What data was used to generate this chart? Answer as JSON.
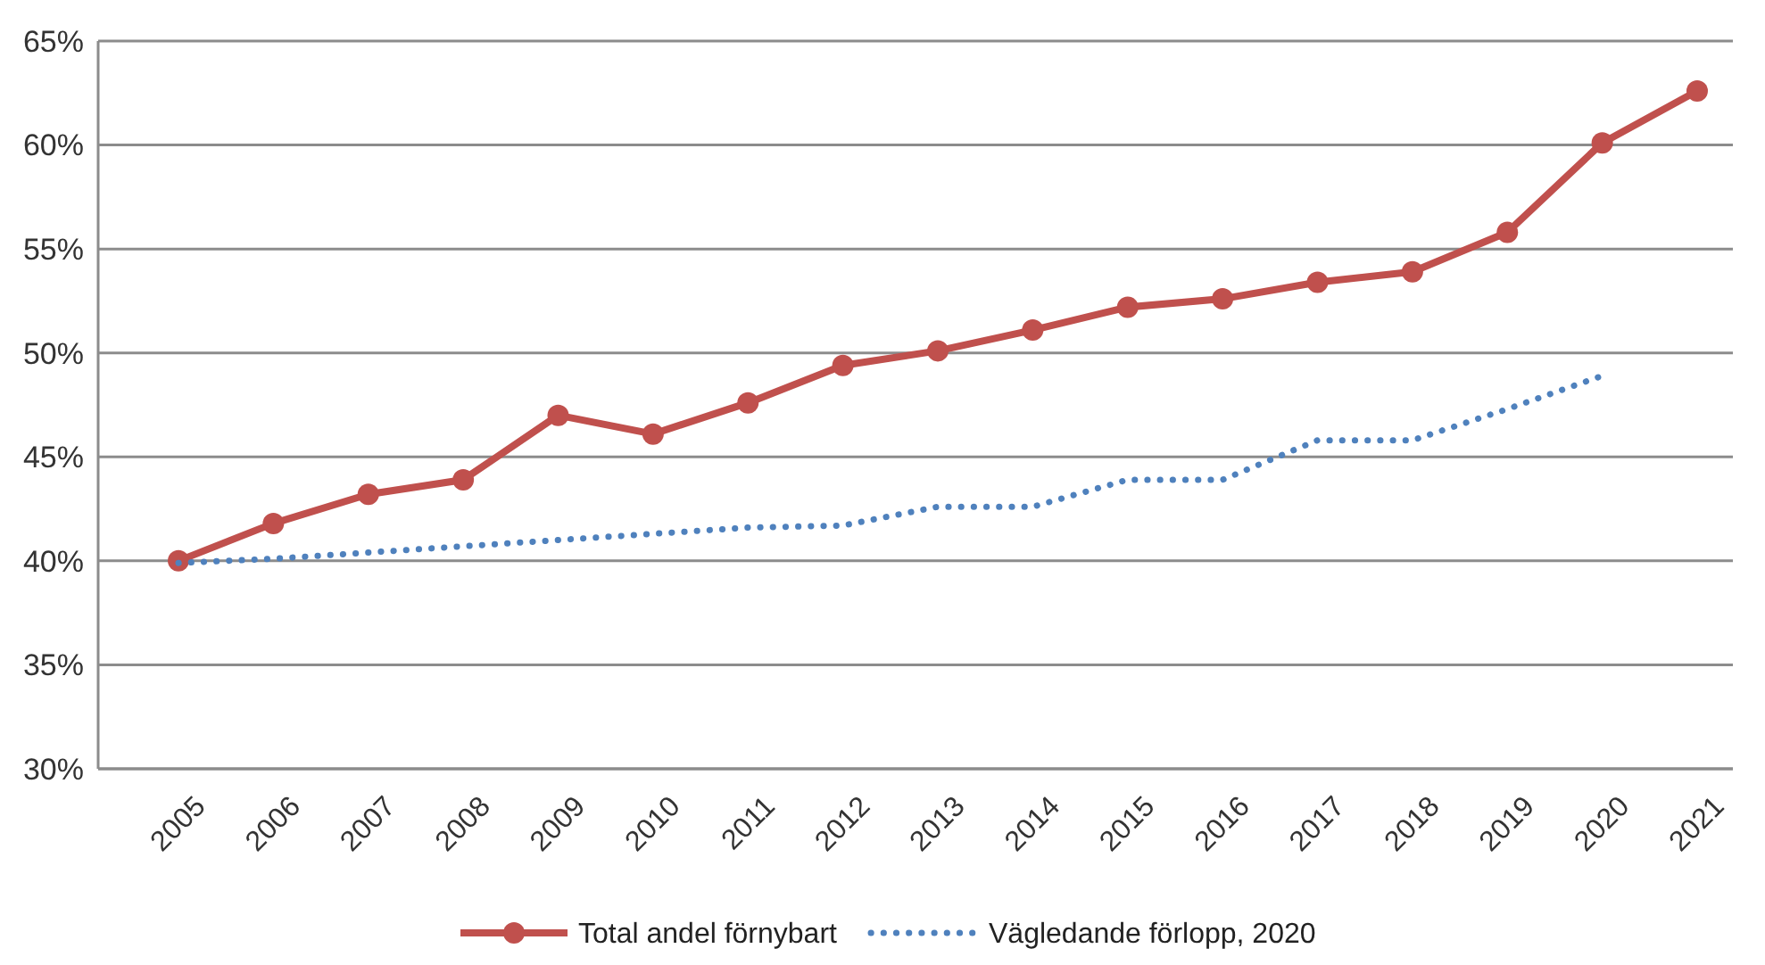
{
  "chart_data": {
    "type": "line",
    "categories": [
      "2005",
      "2006",
      "2007",
      "2008",
      "2009",
      "2010",
      "2011",
      "2012",
      "2013",
      "2014",
      "2015",
      "2016",
      "2017",
      "2018",
      "2019",
      "2020",
      "2021"
    ],
    "series": [
      {
        "name": "Total andel förnybart",
        "color": "#c0504d",
        "marker": "circle",
        "line_style": "solid",
        "values": [
          40.0,
          41.8,
          43.2,
          43.9,
          47.0,
          46.1,
          47.6,
          49.4,
          50.1,
          51.1,
          52.2,
          52.6,
          53.4,
          53.9,
          55.8,
          60.1,
          62.6
        ]
      },
      {
        "name": "Vägledande förlopp, 2020",
        "color": "#4f81bd",
        "marker": "none",
        "line_style": "dotted",
        "values": [
          39.9,
          40.1,
          40.4,
          40.7,
          41.0,
          41.3,
          41.6,
          41.7,
          42.6,
          42.6,
          43.9,
          43.9,
          45.8,
          45.8,
          47.3,
          48.9,
          null
        ]
      }
    ],
    "ylim": [
      30,
      65
    ],
    "yticks": [
      {
        "value": 30,
        "label": "30%"
      },
      {
        "value": 35,
        "label": "35%"
      },
      {
        "value": 40,
        "label": "40%"
      },
      {
        "value": 45,
        "label": "45%"
      },
      {
        "value": 50,
        "label": "50%"
      },
      {
        "value": 55,
        "label": "55%"
      },
      {
        "value": 60,
        "label": "60%"
      },
      {
        "value": 65,
        "label": "65%"
      }
    ],
    "grid": "y",
    "legend": "bottom"
  }
}
